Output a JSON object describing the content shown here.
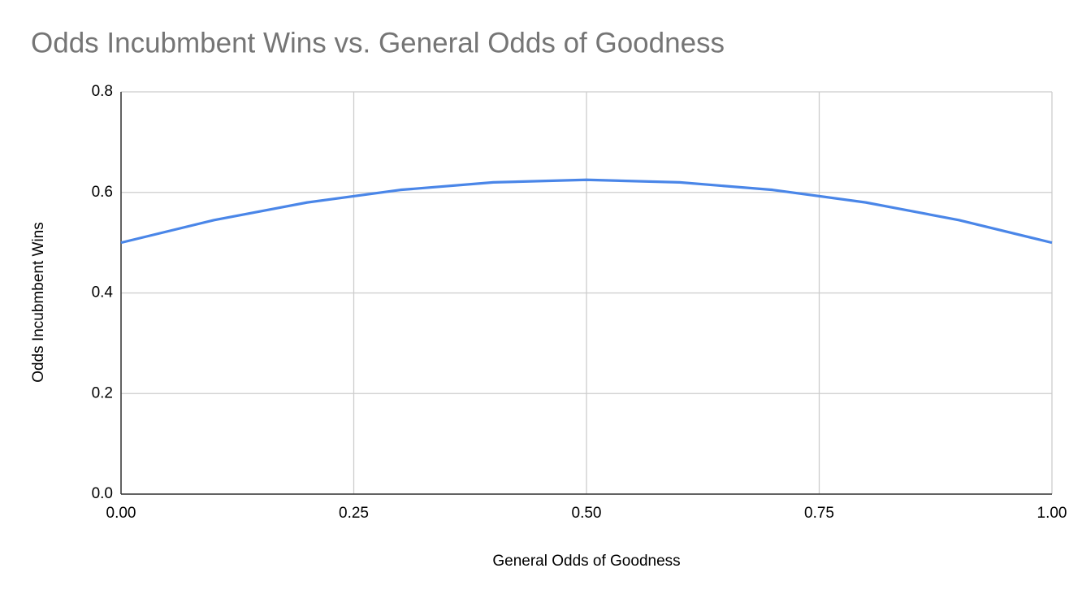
{
  "chart_data": {
    "type": "line",
    "title": "Odds Incubmbent Wins vs. General Odds of Goodness",
    "x_label": "General Odds of Goodness",
    "y_label": "Odds Incubmbent Wins",
    "x": [
      0,
      0.1,
      0.2,
      0.3,
      0.4,
      0.5,
      0.6,
      0.7,
      0.8,
      0.9,
      1
    ],
    "series": [
      {
        "name": "Odds Incubmbent Wins",
        "color": "#4a86e8",
        "values": [
          0.5,
          0.545,
          0.58,
          0.605,
          0.62,
          0.625,
          0.62,
          0.605,
          0.58,
          0.545,
          0.5
        ]
      }
    ],
    "xlim": [
      0,
      1
    ],
    "xticks": [
      {
        "value": 0,
        "label": "0.00"
      },
      0.25,
      {
        "value": 0.5,
        "label": "0.50"
      },
      0.75,
      {
        "value": 1,
        "label": "1.00"
      }
    ],
    "ylim": [
      0,
      0.8
    ],
    "yticks": [
      {
        "value": 0,
        "label": "0.0"
      },
      0.2,
      0.4,
      0.6,
      0.8
    ],
    "grid": true
  }
}
